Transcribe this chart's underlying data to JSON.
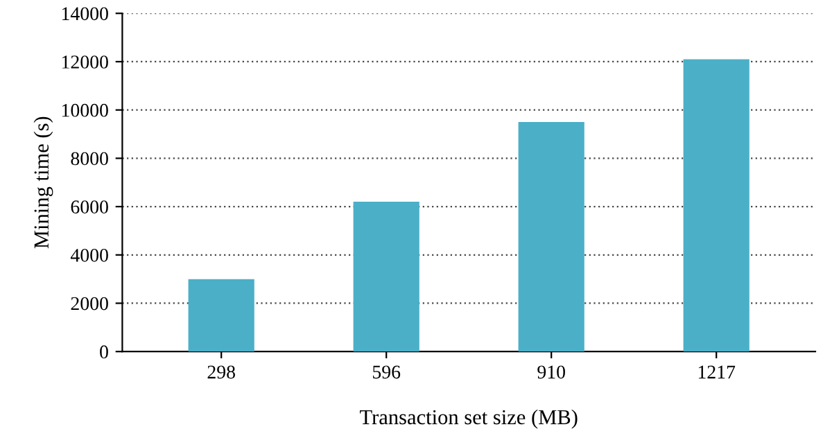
{
  "chart_data": {
    "type": "bar",
    "xlabel": "Transaction set size (MB)",
    "ylabel": "Mining time (s)",
    "categories": [
      "298",
      "596",
      "910",
      "1217"
    ],
    "values": [
      3000,
      6200,
      9500,
      12100
    ],
    "color": "#4bafc8",
    "ylim": [
      0,
      14000
    ],
    "yticks": [
      0,
      2000,
      4000,
      6000,
      8000,
      10000,
      12000,
      14000
    ],
    "grid": "y"
  }
}
